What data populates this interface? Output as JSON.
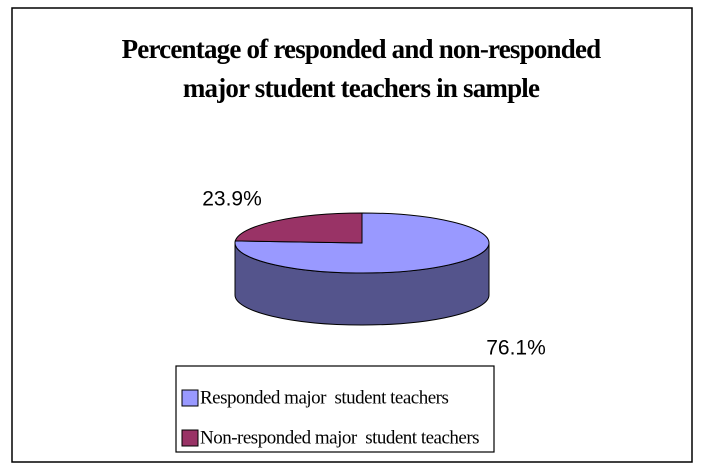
{
  "chart_data": {
    "type": "pie3d",
    "title": "Percentage of responded and non-responded major student teachers in sample",
    "categories": [
      "Responded major  student teachers",
      "Non-responded major  student teachers"
    ],
    "values": [
      76.1,
      23.9
    ],
    "value_labels": [
      "76.1%",
      "23.9%"
    ],
    "colors": [
      "#9999ff",
      "#993366"
    ],
    "legend": "bottom"
  }
}
